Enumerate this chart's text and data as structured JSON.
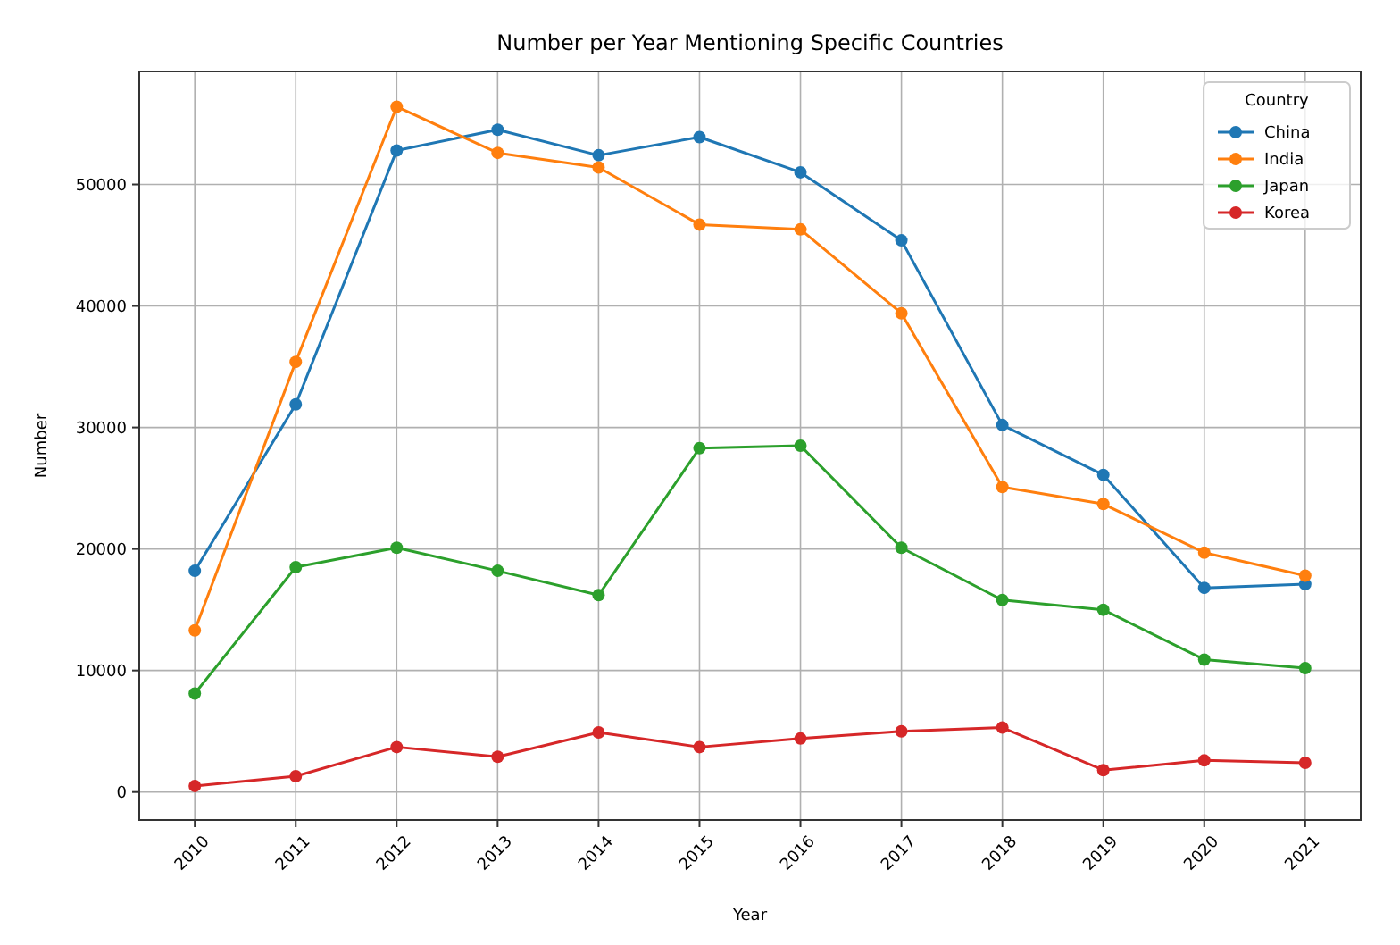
{
  "chart_data": {
    "type": "line",
    "title": "Number per Year Mentioning Specific Countries",
    "xlabel": "Year",
    "ylabel": "Number",
    "legend_title": "Country",
    "categories": [
      "2010",
      "2011",
      "2012",
      "2013",
      "2014",
      "2015",
      "2016",
      "2017",
      "2018",
      "2019",
      "2020",
      "2021"
    ],
    "series": [
      {
        "name": "China",
        "color": "#1f77b4",
        "values": [
          18200,
          31900,
          52800,
          54500,
          52400,
          53900,
          51000,
          45400,
          30200,
          26100,
          16800,
          17100
        ]
      },
      {
        "name": "India",
        "color": "#ff7f0e",
        "values": [
          13300,
          35400,
          56400,
          52600,
          51400,
          46700,
          46300,
          39400,
          25100,
          23700,
          19700,
          17800
        ]
      },
      {
        "name": "Japan",
        "color": "#2ca02c",
        "values": [
          8100,
          18500,
          20100,
          18200,
          16200,
          28300,
          28500,
          20100,
          15800,
          15000,
          10900,
          10200
        ]
      },
      {
        "name": "Korea",
        "color": "#d62728",
        "values": [
          500,
          1300,
          3700,
          2900,
          4900,
          3700,
          4400,
          5000,
          5300,
          1800,
          2600,
          2400
        ]
      }
    ],
    "ylim": [
      -2300,
      59300
    ],
    "yticks": [
      0,
      10000,
      20000,
      30000,
      40000,
      50000
    ],
    "grid": true,
    "legend": "top right",
    "marker": "circle",
    "line_style": "solid"
  }
}
